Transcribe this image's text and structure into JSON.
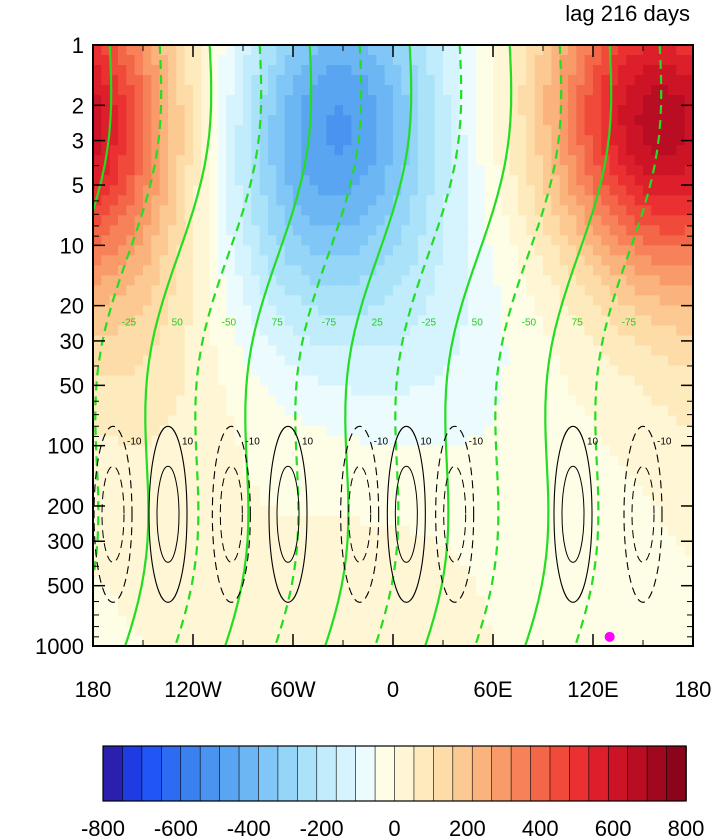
{
  "chart_data": {
    "type": "heatmap",
    "title": "lag 216 days",
    "xlabel": "",
    "ylabel": "",
    "x_ticks": [
      "180",
      "120W",
      "60W",
      "0",
      "60E",
      "120E",
      "180"
    ],
    "x_range": [
      -180,
      180
    ],
    "y_ticks": [
      1,
      2,
      3,
      5,
      10,
      20,
      30,
      50,
      100,
      200,
      300,
      500,
      1000
    ],
    "y_ticks_text": [
      "1",
      "2",
      "3",
      "5",
      "10",
      "20",
      "30",
      "50",
      "100",
      "200",
      "300",
      "500",
      "1000"
    ],
    "y_range": [
      1,
      1000
    ],
    "y_scale": "log",
    "colorbar": {
      "levels": [
        -800,
        -750,
        -700,
        -650,
        -600,
        -550,
        -500,
        -450,
        -400,
        -350,
        -300,
        -250,
        -200,
        -150,
        -100,
        -50,
        0,
        50,
        100,
        150,
        200,
        250,
        300,
        350,
        400,
        450,
        500,
        550,
        600,
        650,
        700,
        750,
        800
      ],
      "tick_values": [
        -800,
        -600,
        -400,
        -200,
        0,
        200,
        400,
        600,
        800
      ],
      "tick_labels": [
        "-800",
        "-600",
        "-400",
        "-200",
        "0",
        "200",
        "400",
        "600",
        "800"
      ],
      "colors": [
        "#2b1fb0",
        "#1f3ce3",
        "#2155f5",
        "#2d6cf2",
        "#3a80ef",
        "#4a93ef",
        "#5aa5f1",
        "#6cb6f3",
        "#80c6f6",
        "#95d5f8",
        "#aae2fa",
        "#c0ecfc",
        "#d6f4fd",
        "#ebfbfe",
        "#fefee6",
        "#fef6d4",
        "#feebbd",
        "#fddca7",
        "#fcc992",
        "#fbb37d",
        "#f99b69",
        "#f78158",
        "#f46648",
        "#f04a3a",
        "#ea3030",
        "#dd1f2b",
        "#cc1426",
        "#b80d22",
        "#a0081f",
        "#8a051c"
      ]
    },
    "shaded_field": {
      "description_units": "same as colorbar",
      "blobs": [
        {
          "lon": -30,
          "lev": 2,
          "value": -420
        },
        {
          "lon": -60,
          "lev": 10,
          "value": -150
        },
        {
          "lon": 20,
          "lev": 30,
          "value": -100
        },
        {
          "lon": 150,
          "lev": 2,
          "value": 430
        },
        {
          "lon": -180,
          "lev": 3,
          "value": 280
        },
        {
          "lon": -150,
          "lev": 30,
          "value": 80
        },
        {
          "lon": 0,
          "lev": 300,
          "value": 25
        },
        {
          "lon": 120,
          "lev": 300,
          "value": -20
        }
      ]
    },
    "green_contours": {
      "solid_labels": [
        "25",
        "50",
        "75"
      ],
      "dashed_labels": [
        "-25",
        "-50",
        "-75"
      ]
    },
    "black_contours": {
      "solid_labels": [
        "10"
      ],
      "dashed_labels": [
        "-10"
      ]
    },
    "marker": {
      "lon": 130,
      "lev": 900,
      "color": "#ff00ff"
    }
  }
}
